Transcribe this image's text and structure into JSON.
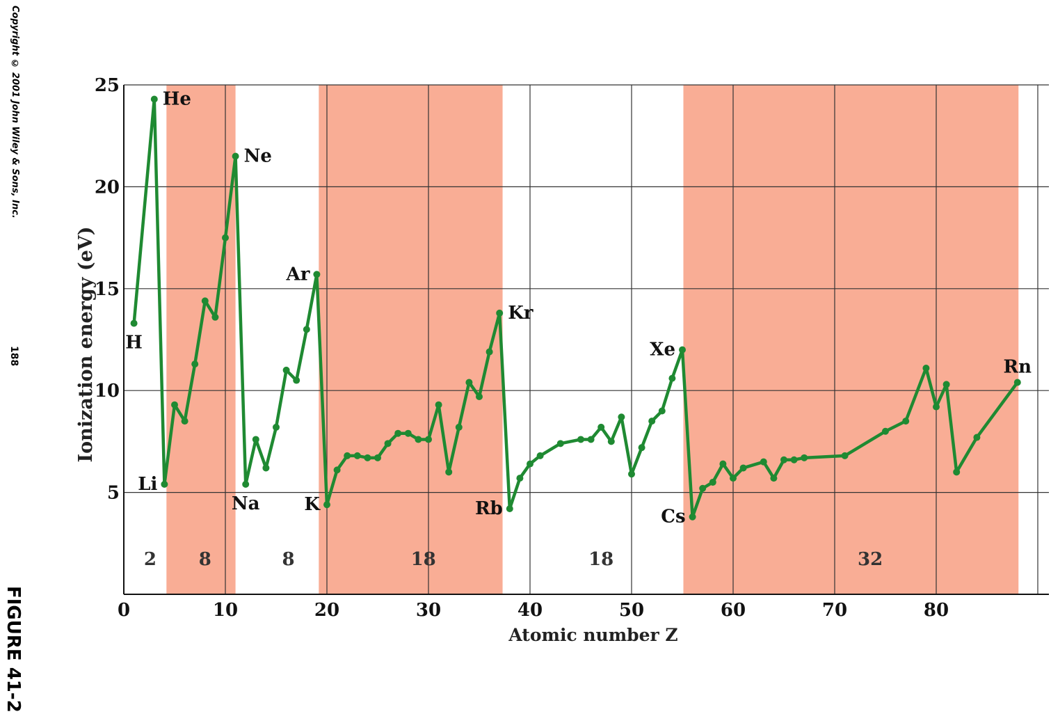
{
  "side_notes": {
    "copyright": "Copyright © 2001 John Wiley & Sons, Inc.",
    "page_number": "188",
    "figure_label": "FIGURE 41-2"
  },
  "colors": {
    "band": "#f9ad95",
    "line": "#1f8a32",
    "grid": "#333333",
    "text": "#111111"
  },
  "chart_data": {
    "type": "line",
    "title": "",
    "xlabel": "Atomic number Z",
    "ylabel": "Ionization energy (eV)",
    "xlim": [
      0,
      91
    ],
    "ylim": [
      0,
      25
    ],
    "xticks": [
      0,
      10,
      20,
      30,
      40,
      50,
      60,
      70,
      80
    ],
    "yticks": [
      5,
      10,
      15,
      20,
      25
    ],
    "grid": true,
    "bands": [
      {
        "from": 4.2,
        "to": 11.0
      },
      {
        "from": 19.2,
        "to": 37.3
      },
      {
        "from": 55.1,
        "to": 88.1
      }
    ],
    "period_labels": [
      {
        "x": 2.6,
        "text": "2"
      },
      {
        "x": 8.0,
        "text": "8"
      },
      {
        "x": 16.2,
        "text": "8"
      },
      {
        "x": 29.5,
        "text": "18"
      },
      {
        "x": 47.0,
        "text": "18"
      },
      {
        "x": 73.5,
        "text": "32"
      }
    ],
    "series": [
      {
        "x": [
          1,
          2,
          3,
          4,
          5,
          6,
          7,
          8,
          9,
          10,
          11,
          12,
          13,
          14,
          15,
          16,
          17,
          18,
          19,
          20,
          21,
          22,
          23,
          24,
          25,
          26,
          27,
          28,
          29,
          30,
          31,
          32,
          33,
          34,
          35,
          36,
          37,
          38,
          39,
          40,
          42,
          44,
          45,
          46,
          47,
          48,
          49,
          50,
          51,
          52,
          53,
          54,
          55,
          56,
          57,
          58,
          59,
          60,
          62,
          63,
          64,
          65,
          66,
          70,
          74,
          76,
          77,
          78,
          79,
          80,
          81,
          82,
          83
        ],
        "y": [
          13.6,
          24.6,
          5.4,
          9.3,
          8.3,
          11.3,
          14.5,
          13.6,
          17.4,
          21.6,
          5.1,
          7.6,
          6.0,
          8.2,
          10.5,
          10.4,
          13.0,
          15.8,
          4.3,
          6.1,
          6.5,
          6.8,
          6.7,
          6.8,
          7.4,
          7.9,
          7.9,
          7.6,
          7.7,
          9.4,
          6.0,
          8.1,
          9.8,
          9.8,
          11.8,
          14.0,
          4.2,
          5.7,
          6.4,
          6.8,
          7.1,
          7.4,
          7.5,
          8.3,
          7.6,
          9.0,
          5.8,
          7.3,
          8.6,
          9.0,
          10.5,
          12.1,
          3.9,
          5.2,
          5.6,
          6.4,
          5.7,
          6.3,
          5.6,
          5.7,
          6.2,
          5.9,
          6.8,
          6.5,
          7.9,
          8.5,
          11.0,
          9.0,
          10.5,
          6.0,
          7.3,
          10.6,
          4.0
        ],
        "points_drawn": [
          [
            1,
            13.3
          ],
          [
            3,
            24.3
          ],
          [
            4,
            5.4
          ],
          [
            5,
            9.3
          ],
          [
            6,
            8.5
          ],
          [
            7,
            11.3
          ],
          [
            8,
            14.4
          ],
          [
            9,
            13.6
          ],
          [
            10,
            17.5
          ],
          [
            11,
            21.5
          ],
          [
            12,
            5.4
          ],
          [
            13,
            7.6
          ],
          [
            14,
            6.2
          ],
          [
            15,
            8.2
          ],
          [
            16,
            11.0
          ],
          [
            17,
            10.5
          ],
          [
            18,
            13.0
          ],
          [
            19,
            15.7
          ],
          [
            20,
            4.4
          ],
          [
            21,
            6.1
          ],
          [
            22,
            6.8
          ],
          [
            23,
            6.8
          ],
          [
            24,
            6.7
          ],
          [
            25,
            6.7
          ],
          [
            26,
            7.4
          ],
          [
            27,
            7.9
          ],
          [
            28,
            7.9
          ],
          [
            29,
            7.6
          ],
          [
            30,
            7.6
          ],
          [
            31,
            9.3
          ],
          [
            32,
            6.0
          ],
          [
            33,
            8.2
          ],
          [
            34,
            10.4
          ],
          [
            35,
            9.7
          ],
          [
            36,
            11.9
          ],
          [
            37,
            13.8
          ],
          [
            38,
            4.2
          ],
          [
            39,
            5.7
          ],
          [
            40,
            6.4
          ],
          [
            41,
            6.8
          ],
          [
            43,
            7.4
          ],
          [
            45,
            7.6
          ],
          [
            46,
            7.6
          ],
          [
            47,
            8.2
          ],
          [
            48,
            7.5
          ],
          [
            49,
            8.7
          ],
          [
            50,
            5.9
          ],
          [
            51,
            7.2
          ],
          [
            52,
            8.5
          ],
          [
            53,
            9.0
          ],
          [
            54,
            10.6
          ],
          [
            55,
            12.0
          ],
          [
            56,
            3.8
          ],
          [
            57,
            5.2
          ],
          [
            58,
            5.5
          ],
          [
            59,
            6.4
          ],
          [
            60,
            5.7
          ],
          [
            61,
            6.2
          ],
          [
            63,
            6.5
          ],
          [
            64,
            5.7
          ],
          [
            65,
            6.6
          ],
          [
            66,
            6.6
          ],
          [
            67,
            6.7
          ],
          [
            71,
            6.8
          ],
          [
            75,
            8.0
          ],
          [
            77,
            8.5
          ],
          [
            79,
            11.1
          ],
          [
            80,
            9.2
          ],
          [
            81,
            10.3
          ],
          [
            82,
            6.0
          ],
          [
            84,
            7.7
          ],
          [
            88,
            10.4
          ]
        ]
      }
    ],
    "element_labels": [
      {
        "text": "H",
        "x": 1,
        "y": 13.3,
        "pos": "below"
      },
      {
        "text": "He",
        "x": 3,
        "y": 24.3,
        "pos": "right"
      },
      {
        "text": "Li",
        "x": 4,
        "y": 5.4,
        "pos": "left"
      },
      {
        "text": "Ne",
        "x": 11,
        "y": 21.5,
        "pos": "right"
      },
      {
        "text": "Na",
        "x": 12,
        "y": 5.4,
        "pos": "below"
      },
      {
        "text": "Ar",
        "x": 19,
        "y": 15.7,
        "pos": "left"
      },
      {
        "text": "K",
        "x": 20,
        "y": 4.4,
        "pos": "left"
      },
      {
        "text": "Kr",
        "x": 37,
        "y": 13.8,
        "pos": "right"
      },
      {
        "text": "Rb",
        "x": 38,
        "y": 4.2,
        "pos": "left"
      },
      {
        "text": "Xe",
        "x": 55,
        "y": 12.0,
        "pos": "left"
      },
      {
        "text": "Cs",
        "x": 56,
        "y": 3.8,
        "pos": "left"
      },
      {
        "text": "Rn",
        "x": 88,
        "y": 10.4,
        "pos": "above"
      }
    ]
  }
}
